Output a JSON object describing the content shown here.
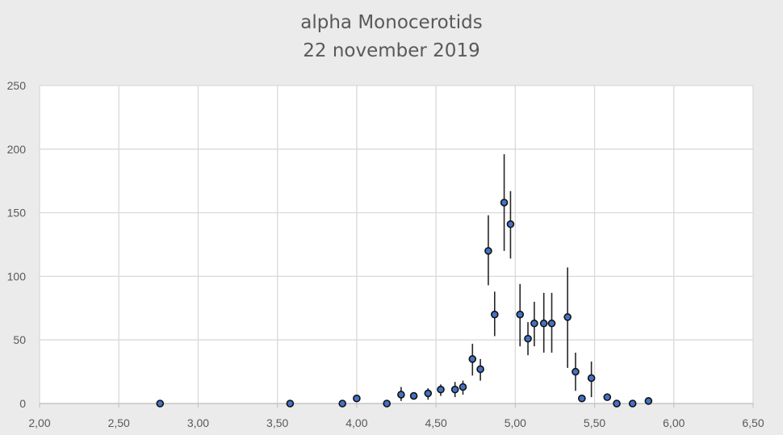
{
  "chart_data": {
    "type": "scatter",
    "title": [
      "alpha Monocerotids",
      "22 november 2019"
    ],
    "xlim": [
      2.0,
      6.5
    ],
    "ylim": [
      0,
      250
    ],
    "x_ticks": [
      "2,00",
      "2,50",
      "3,00",
      "3,50",
      "4,00",
      "4,50",
      "5,00",
      "5,50",
      "6,00",
      "6,50"
    ],
    "y_ticks": [
      "0",
      "50",
      "100",
      "150",
      "200",
      "250"
    ],
    "grid": true,
    "legend": "none",
    "marker_color": "#4472c4",
    "points": [
      {
        "x": 2.76,
        "y": 0
      },
      {
        "x": 3.58,
        "y": 0
      },
      {
        "x": 3.91,
        "y": 0
      },
      {
        "x": 4.0,
        "y": 4
      },
      {
        "x": 4.19,
        "y": 0
      },
      {
        "x": 4.28,
        "y": 7,
        "err": [
          2,
          13
        ]
      },
      {
        "x": 4.36,
        "y": 6
      },
      {
        "x": 4.45,
        "y": 8,
        "err": [
          3,
          12
        ]
      },
      {
        "x": 4.53,
        "y": 11,
        "err": [
          6,
          15
        ]
      },
      {
        "x": 4.62,
        "y": 11,
        "err": [
          5,
          17
        ]
      },
      {
        "x": 4.67,
        "y": 13,
        "err": [
          7,
          18
        ]
      },
      {
        "x": 4.73,
        "y": 35,
        "err": [
          22,
          47
        ]
      },
      {
        "x": 4.78,
        "y": 27,
        "err": [
          18,
          35
        ]
      },
      {
        "x": 4.83,
        "y": 120,
        "err": [
          93,
          148
        ]
      },
      {
        "x": 4.87,
        "y": 70,
        "err": [
          53,
          88
        ]
      },
      {
        "x": 4.93,
        "y": 158,
        "err": [
          120,
          196
        ]
      },
      {
        "x": 4.97,
        "y": 141,
        "err": [
          114,
          167
        ]
      },
      {
        "x": 5.03,
        "y": 70,
        "err": [
          45,
          94
        ]
      },
      {
        "x": 5.08,
        "y": 51,
        "err": [
          38,
          64
        ]
      },
      {
        "x": 5.12,
        "y": 63,
        "err": [
          45,
          80
        ]
      },
      {
        "x": 5.18,
        "y": 63,
        "err": [
          40,
          87
        ]
      },
      {
        "x": 5.23,
        "y": 63,
        "err": [
          40,
          87
        ]
      },
      {
        "x": 5.33,
        "y": 68,
        "err": [
          28,
          107
        ]
      },
      {
        "x": 5.38,
        "y": 25,
        "err": [
          10,
          40
        ]
      },
      {
        "x": 5.42,
        "y": 4
      },
      {
        "x": 5.48,
        "y": 20,
        "err": [
          5,
          33
        ]
      },
      {
        "x": 5.58,
        "y": 5
      },
      {
        "x": 5.64,
        "y": 0
      },
      {
        "x": 5.74,
        "y": 0
      },
      {
        "x": 5.84,
        "y": 2
      }
    ]
  }
}
